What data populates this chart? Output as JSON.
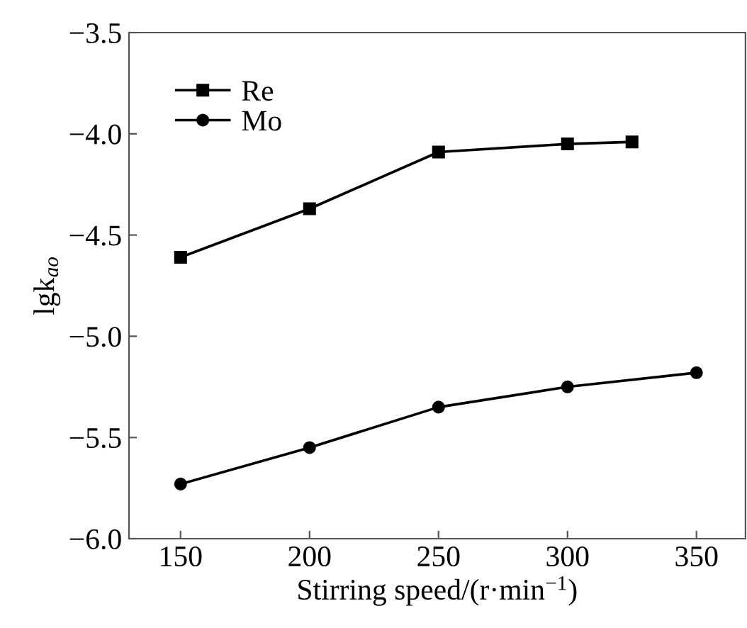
{
  "chart_data": {
    "type": "line",
    "xlabel": "Stirring speed/(r·min$^{−1}$)",
    "ylabel": "lgk$_{ao}$",
    "xlim": [
      130,
      369
    ],
    "xticks": [
      150,
      200,
      250,
      300,
      350
    ],
    "ylim": [
      -6.0,
      -3.5
    ],
    "yticks": [
      {
        "value": -6.0,
        "label": "−6.0"
      },
      {
        "value": -5.5,
        "label": "−5.5"
      },
      {
        "value": -5.0,
        "label": "−5.0"
      },
      {
        "value": -4.5,
        "label": "−4.5"
      },
      {
        "value": -4.0,
        "label": "−4.0"
      },
      {
        "value": -3.5,
        "label": "−3.5"
      }
    ],
    "grid": false,
    "legend": "top left",
    "line_style": "solid",
    "series": [
      {
        "name": "Re",
        "color": "#000000",
        "marker": "square",
        "x": [
          150,
          200,
          250,
          300,
          325
        ],
        "values": [
          -4.61,
          -4.37,
          -4.09,
          -4.05,
          -4.04
        ]
      },
      {
        "name": "Mo",
        "color": "#000000",
        "marker": "circle",
        "x": [
          150,
          200,
          250,
          300,
          350
        ],
        "values": [
          -5.73,
          -5.55,
          -5.35,
          -5.25,
          -5.18
        ]
      }
    ]
  }
}
